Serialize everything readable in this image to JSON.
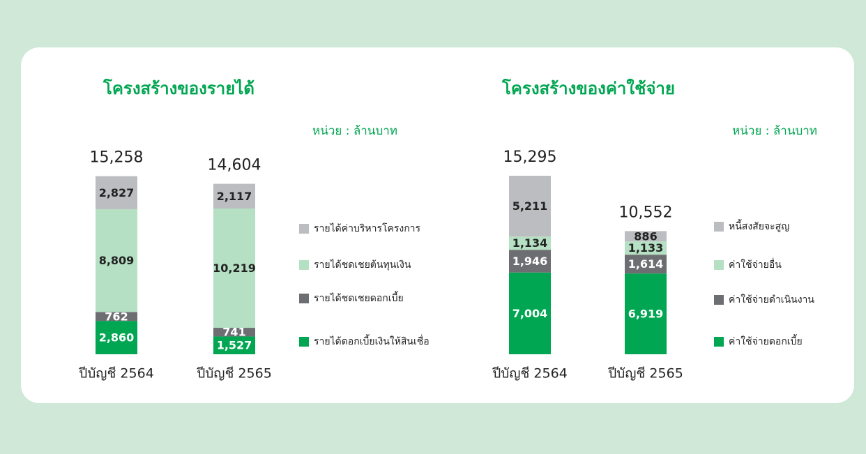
{
  "chart_data": [
    {
      "type": "stacked-bar",
      "title": "โครงสร้างของรายได้",
      "unit": "หน่วย : ล้านบาท",
      "categories": [
        "ปีบัญชี 2564",
        "ปีบัญชี 2565"
      ],
      "totals": [
        15258,
        14604
      ],
      "total_labels": [
        "15,258",
        "14,604"
      ],
      "series": [
        {
          "name": "รายได้ดอกเบี้ยเงินให้สินเชื่อ",
          "color": "#00a651",
          "values": [
            2860,
            1527
          ],
          "value_labels": [
            "2,860",
            "1,527"
          ]
        },
        {
          "name": "รายได้ชดเชยดอกเบี้ย",
          "color": "#6d6e71",
          "values": [
            762,
            741
          ]
        },
        {
          "name": "รายได้ชดเชยต้นทุนเงิน",
          "color": "#b5e0c4",
          "values": [
            8809,
            10219
          ],
          "value_labels": [
            "8,809",
            "10,219"
          ]
        },
        {
          "name": "รายได้ค่าบริหารโครงการ",
          "color": "#bcbdc0",
          "values": [
            2827,
            2117
          ],
          "value_labels": [
            "2,827",
            "2,117"
          ]
        }
      ]
    },
    {
      "type": "stacked-bar",
      "title": "โครงสร้างของค่าใช้จ่าย",
      "unit": "หน่วย : ล้านบาท",
      "categories": [
        "ปีบัญชี 2564",
        "ปีบัญชี 2565"
      ],
      "totals": [
        15295,
        10552
      ],
      "total_labels": [
        "15,295",
        "10,552"
      ],
      "series": [
        {
          "name": "ค่าใช้จ่ายดอกเบี้ย",
          "color": "#00a651",
          "values": [
            7004,
            6919
          ],
          "value_labels": [
            "7,004",
            "6,919"
          ]
        },
        {
          "name": "ค่าใช้จ่ายดำเนินงาน",
          "color": "#6d6e71",
          "values": [
            1946,
            1614
          ],
          "value_labels": [
            "1,946",
            "1,614"
          ]
        },
        {
          "name": "ค่าใช้จ่ายอื่น",
          "color": "#b5e0c4",
          "values": [
            1134,
            1133
          ],
          "value_labels": [
            "1,134",
            "1,133"
          ]
        },
        {
          "name": "หนี้สงสัยจะสูญ",
          "color": "#bcbdc0",
          "values": [
            5211,
            886
          ],
          "value_labels": [
            "5,211",
            "886"
          ]
        }
      ]
    }
  ]
}
